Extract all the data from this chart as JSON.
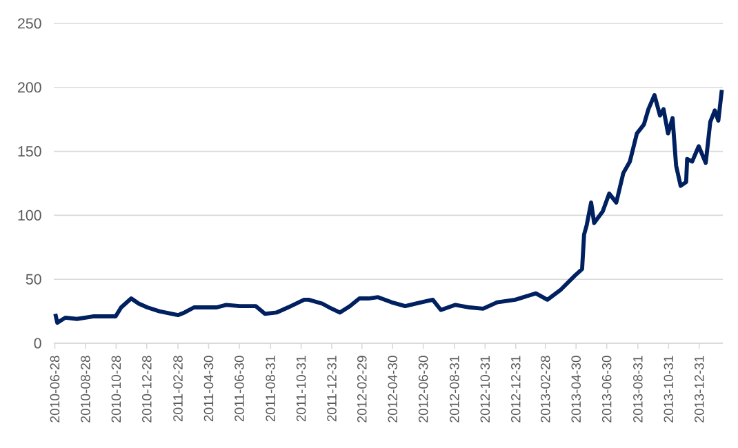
{
  "chart_data": {
    "type": "line",
    "x": [
      "2010-06-29",
      "2010-07-03",
      "2010-07-19",
      "2010-08-11",
      "2010-09-12",
      "2010-10-27",
      "2010-11-07",
      "2010-11-27",
      "2010-12-12",
      "2010-12-29",
      "2011-01-22",
      "2011-02-28",
      "2011-03-13",
      "2011-04-01",
      "2011-05-16",
      "2011-06-04",
      "2011-07-01",
      "2011-08-02",
      "2011-08-20",
      "2011-09-12",
      "2011-10-05",
      "2011-11-06",
      "2011-11-15",
      "2011-12-12",
      "2011-12-26",
      "2012-01-16",
      "2012-02-05",
      "2012-02-24",
      "2012-03-13",
      "2012-04-01",
      "2012-04-28",
      "2012-05-25",
      "2012-06-26",
      "2012-07-19",
      "2012-08-04",
      "2012-09-02",
      "2012-09-30",
      "2012-10-27",
      "2012-11-24",
      "2012-12-30",
      "2013-02-09",
      "2013-03-04",
      "2013-03-31",
      "2013-04-28",
      "2013-05-12",
      "2013-05-16",
      "2013-05-21",
      "2013-05-30",
      "2013-06-05",
      "2013-06-22",
      "2013-07-05",
      "2013-07-19",
      "2013-08-02",
      "2013-08-15",
      "2013-08-29",
      "2013-09-12",
      "2013-09-21",
      "2013-10-03",
      "2013-10-14",
      "2013-10-21",
      "2013-10-30",
      "2013-11-08",
      "2013-11-15",
      "2013-11-24",
      "2013-12-05",
      "2013-12-07",
      "2013-12-17",
      "2013-12-30",
      "2014-01-13",
      "2014-01-22",
      "2014-01-31",
      "2014-02-07",
      "2014-02-14"
    ],
    "series": [
      {
        "color": "#002060",
        "values": [
          23,
          16,
          20,
          19,
          21,
          21,
          28,
          35,
          31,
          28,
          25,
          22,
          24,
          28,
          28,
          30,
          29,
          29,
          23,
          24,
          28,
          34,
          34,
          31,
          28,
          24,
          29,
          35,
          35,
          36,
          32,
          29,
          32,
          34,
          26,
          30,
          28,
          27,
          32,
          34,
          39,
          34,
          42,
          53,
          58,
          85,
          92,
          110,
          94,
          103,
          117,
          110,
          133,
          142,
          164,
          171,
          183,
          194,
          178,
          183,
          164,
          176,
          139,
          123,
          126,
          144,
          142,
          154,
          141,
          173,
          182,
          174,
          198
        ]
      }
    ],
    "xlim": [
      "2010-06-26",
      "2014-02-16"
    ],
    "xticks": [
      "2010-06-28",
      "2010-08-28",
      "2010-10-28",
      "2010-12-28",
      "2011-02-28",
      "2011-04-30",
      "2011-06-30",
      "2011-08-31",
      "2011-10-31",
      "2011-12-31",
      "2012-02-29",
      "2012-04-30",
      "2012-06-30",
      "2012-08-31",
      "2012-10-31",
      "2012-12-31",
      "2013-02-28",
      "2013-04-30",
      "2013-06-30",
      "2013-08-31",
      "2013-10-31",
      "2013-12-31"
    ],
    "ylim": [
      0,
      250
    ],
    "yticks": [
      0,
      50,
      100,
      150,
      200,
      250
    ],
    "grid": "y",
    "marker": "none",
    "line_style": "solid"
  }
}
